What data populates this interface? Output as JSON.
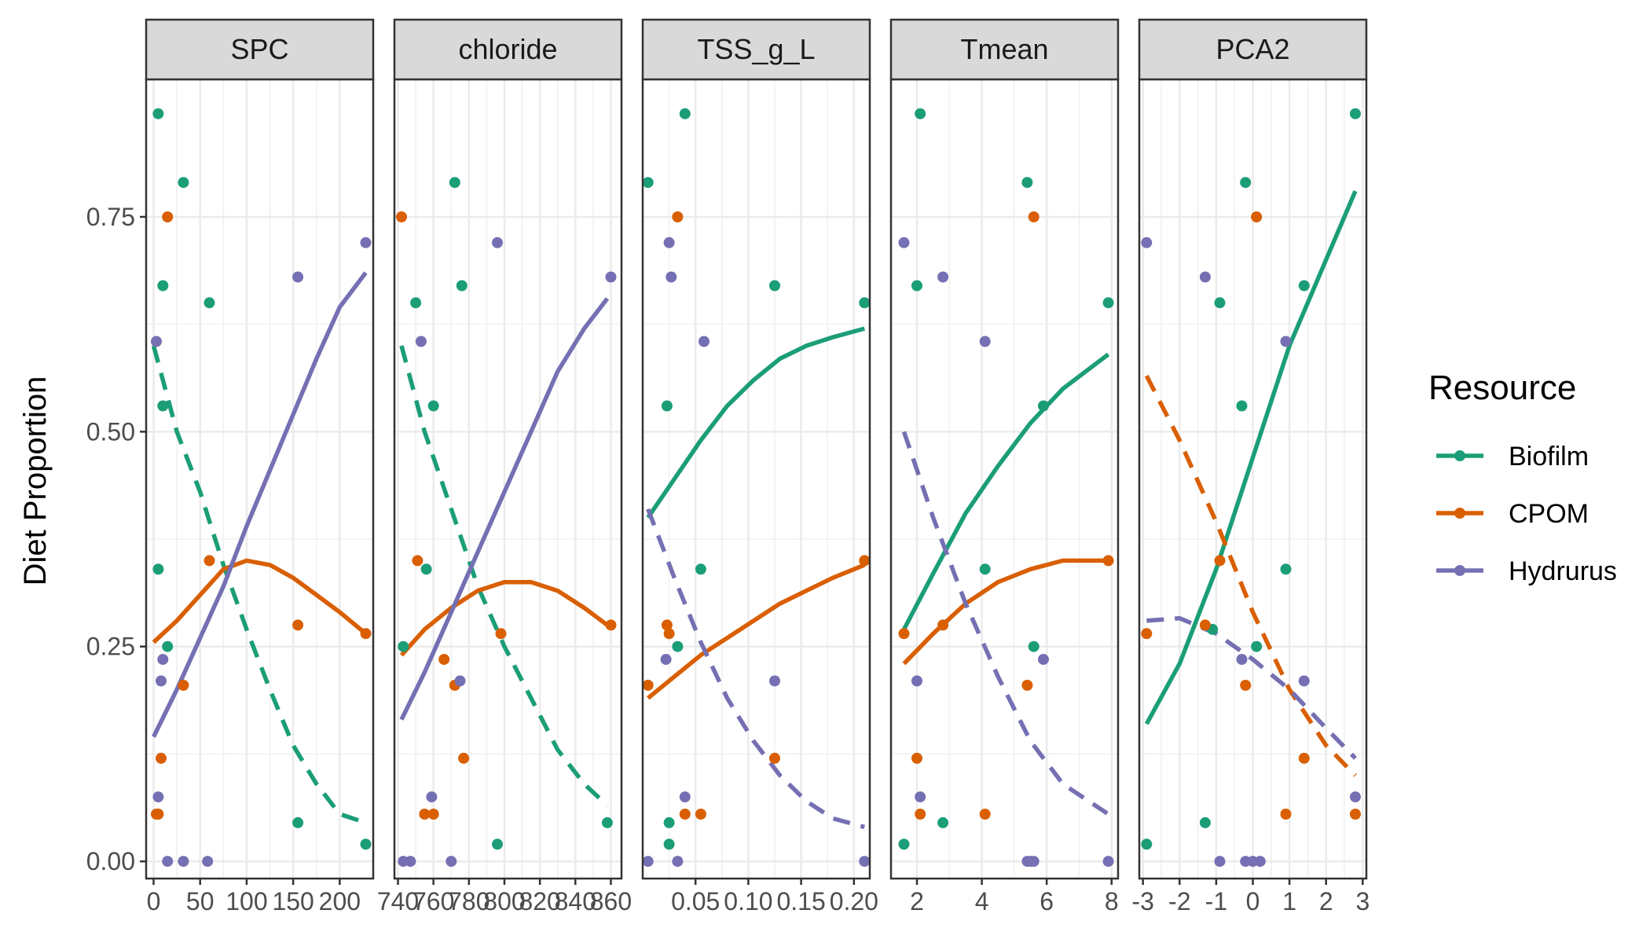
{
  "chart_data": {
    "type": "scatter",
    "ylabel": "Diet Proportion",
    "ylim": [
      -0.02,
      0.91
    ],
    "yticks": [
      0.0,
      0.25,
      0.5,
      0.75
    ],
    "ytick_labels": [
      "0.00",
      "0.25",
      "0.50",
      "0.75"
    ],
    "legend": {
      "title": "Resource",
      "placement": "right",
      "entries": [
        {
          "name": "Biofilm",
          "color": "#1B9E77"
        },
        {
          "name": "CPOM",
          "color": "#D95F02"
        },
        {
          "name": "Hydrurus",
          "color": "#7570B3"
        }
      ]
    },
    "panels": [
      {
        "name": "SPC",
        "xlim": [
          -8,
          236
        ],
        "xticks": [
          0,
          50,
          100,
          150,
          200
        ],
        "xtick_labels": [
          "0",
          "50",
          "100",
          "150",
          "200"
        ],
        "series": [
          {
            "name": "Biofilm",
            "x": [
              5,
              5,
              10,
              10,
              15,
              32,
              60,
              155,
              228
            ],
            "y": [
              0.87,
              0.34,
              0.67,
              0.53,
              0.25,
              0.79,
              0.65,
              0.045,
              0.02
            ]
          },
          {
            "name": "CPOM",
            "x": [
              3,
              5,
              8,
              15,
              32,
              60,
              155,
              228
            ],
            "y": [
              0.055,
              0.055,
              0.12,
              0.75,
              0.205,
              0.35,
              0.275,
              0.265
            ]
          },
          {
            "name": "Hydrurus",
            "x": [
              3,
              5,
              8,
              10,
              15,
              32,
              58,
              155,
              228
            ],
            "y": [
              0.605,
              0.075,
              0.21,
              0.235,
              0.0,
              0.0,
              0.0,
              0.68,
              0.72
            ]
          }
        ],
        "fits": [
          {
            "name": "Biofilm",
            "style": "dashed",
            "x": [
              0,
              25,
              50,
              75,
              100,
              125,
              150,
              175,
              200,
              228
            ],
            "y": [
              0.6,
              0.5,
              0.43,
              0.345,
              0.27,
              0.2,
              0.135,
              0.09,
              0.055,
              0.045
            ]
          },
          {
            "name": "CPOM",
            "style": "solid",
            "x": [
              0,
              25,
              50,
              75,
              100,
              125,
              150,
              175,
              200,
              228
            ],
            "y": [
              0.255,
              0.28,
              0.31,
              0.34,
              0.35,
              0.345,
              0.33,
              0.31,
              0.29,
              0.265
            ]
          },
          {
            "name": "Hydrurus",
            "style": "solid",
            "x": [
              0,
              25,
              50,
              75,
              100,
              125,
              150,
              175,
              200,
              228
            ],
            "y": [
              0.145,
              0.2,
              0.26,
              0.32,
              0.39,
              0.455,
              0.52,
              0.585,
              0.645,
              0.685
            ]
          }
        ]
      },
      {
        "name": "chloride",
        "xlim": [
          738,
          866
        ],
        "xticks": [
          740,
          760,
          780,
          800,
          820,
          840,
          860
        ],
        "xtick_labels": [
          "740",
          "760",
          "780",
          "800",
          "820",
          "840",
          "860"
        ],
        "series": [
          {
            "name": "Biofilm",
            "x": [
              743,
              750,
              756,
              760,
              772,
              776,
              796,
              858
            ],
            "y": [
              0.25,
              0.65,
              0.34,
              0.53,
              0.79,
              0.67,
              0.02,
              0.045
            ]
          },
          {
            "name": "CPOM",
            "x": [
              742,
              751,
              755,
              760,
              766,
              772,
              777,
              798,
              860
            ],
            "y": [
              0.75,
              0.35,
              0.055,
              0.055,
              0.235,
              0.205,
              0.12,
              0.265,
              0.275
            ]
          },
          {
            "name": "Hydrurus",
            "x": [
              743,
              747,
              753,
              759,
              770,
              775,
              796,
              860
            ],
            "y": [
              0.0,
              0.0,
              0.605,
              0.075,
              0.0,
              0.21,
              0.72,
              0.68
            ]
          }
        ],
        "fits": [
          {
            "name": "Biofilm",
            "style": "dashed",
            "x": [
              742,
              755,
              770,
              785,
              800,
              815,
              830,
              845,
              858
            ],
            "y": [
              0.6,
              0.5,
              0.41,
              0.32,
              0.25,
              0.19,
              0.13,
              0.09,
              0.065
            ]
          },
          {
            "name": "CPOM",
            "style": "solid",
            "x": [
              742,
              755,
              770,
              785,
              800,
              815,
              830,
              845,
              858
            ],
            "y": [
              0.24,
              0.27,
              0.295,
              0.315,
              0.325,
              0.325,
              0.315,
              0.295,
              0.275
            ]
          },
          {
            "name": "Hydrurus",
            "style": "solid",
            "x": [
              742,
              755,
              770,
              785,
              800,
              815,
              830,
              845,
              858
            ],
            "y": [
              0.165,
              0.22,
              0.29,
              0.36,
              0.43,
              0.5,
              0.57,
              0.62,
              0.655
            ]
          }
        ]
      },
      {
        "name": "TSS_g_L",
        "xlim": [
          0.0,
          0.215
        ],
        "xticks": [
          0.05,
          0.1,
          0.15,
          0.2
        ],
        "xtick_labels": [
          "0.05",
          "0.10",
          "0.15",
          "0.20"
        ],
        "series": [
          {
            "name": "Biofilm",
            "x": [
              0.005,
              0.023,
              0.025,
              0.025,
              0.033,
              0.04,
              0.055,
              0.125,
              0.21
            ],
            "y": [
              0.79,
              0.53,
              0.045,
              0.02,
              0.25,
              0.87,
              0.34,
              0.67,
              0.65
            ]
          },
          {
            "name": "CPOM",
            "x": [
              0.005,
              0.023,
              0.025,
              0.033,
              0.04,
              0.055,
              0.125,
              0.21
            ],
            "y": [
              0.205,
              0.275,
              0.265,
              0.75,
              0.055,
              0.055,
              0.12,
              0.35
            ]
          },
          {
            "name": "Hydrurus",
            "x": [
              0.005,
              0.022,
              0.025,
              0.027,
              0.033,
              0.04,
              0.058,
              0.125,
              0.21
            ],
            "y": [
              0.0,
              0.235,
              0.72,
              0.68,
              0.0,
              0.075,
              0.605,
              0.21,
              0.0
            ]
          }
        ],
        "fits": [
          {
            "name": "Biofilm",
            "style": "solid",
            "x": [
              0.005,
              0.03,
              0.055,
              0.08,
              0.105,
              0.13,
              0.155,
              0.18,
              0.21
            ],
            "y": [
              0.4,
              0.445,
              0.49,
              0.53,
              0.56,
              0.585,
              0.6,
              0.61,
              0.62
            ]
          },
          {
            "name": "CPOM",
            "style": "solid",
            "x": [
              0.005,
              0.03,
              0.055,
              0.08,
              0.105,
              0.13,
              0.155,
              0.18,
              0.21
            ],
            "y": [
              0.19,
              0.215,
              0.24,
              0.26,
              0.28,
              0.3,
              0.315,
              0.33,
              0.345
            ]
          },
          {
            "name": "Hydrurus",
            "style": "dashed",
            "x": [
              0.005,
              0.03,
              0.055,
              0.08,
              0.105,
              0.13,
              0.155,
              0.18,
              0.21
            ],
            "y": [
              0.41,
              0.33,
              0.255,
              0.19,
              0.14,
              0.1,
              0.07,
              0.05,
              0.04
            ]
          }
        ]
      },
      {
        "name": "Tmean",
        "xlim": [
          1.2,
          8.2
        ],
        "xticks": [
          2,
          4,
          6,
          8
        ],
        "xtick_labels": [
          "2",
          "4",
          "6",
          "8"
        ],
        "series": [
          {
            "name": "Biofilm",
            "x": [
              1.6,
              2.0,
              2.1,
              2.8,
              4.1,
              5.4,
              5.6,
              5.9,
              7.9
            ],
            "y": [
              0.02,
              0.67,
              0.87,
              0.045,
              0.34,
              0.79,
              0.25,
              0.53,
              0.65
            ]
          },
          {
            "name": "CPOM",
            "x": [
              1.6,
              2.0,
              2.1,
              2.8,
              4.1,
              5.4,
              5.6,
              7.9
            ],
            "y": [
              0.265,
              0.12,
              0.055,
              0.275,
              0.055,
              0.205,
              0.75,
              0.35
            ]
          },
          {
            "name": "Hydrurus",
            "x": [
              1.6,
              2.0,
              2.1,
              2.8,
              4.1,
              5.4,
              5.5,
              5.6,
              5.9,
              7.9
            ],
            "y": [
              0.72,
              0.21,
              0.075,
              0.68,
              0.605,
              0.0,
              0.0,
              0.0,
              0.235,
              0.0
            ]
          }
        ],
        "fits": [
          {
            "name": "Biofilm",
            "style": "solid",
            "x": [
              1.6,
              2.5,
              3.5,
              4.5,
              5.5,
              6.5,
              7.9
            ],
            "y": [
              0.27,
              0.335,
              0.405,
              0.46,
              0.51,
              0.55,
              0.59
            ]
          },
          {
            "name": "CPOM",
            "style": "solid",
            "x": [
              1.6,
              2.5,
              3.5,
              4.5,
              5.5,
              6.5,
              7.9
            ],
            "y": [
              0.23,
              0.265,
              0.3,
              0.325,
              0.34,
              0.35,
              0.35
            ]
          },
          {
            "name": "Hydrurus",
            "style": "dashed",
            "x": [
              1.6,
              2.5,
              3.5,
              4.5,
              5.5,
              6.5,
              7.9
            ],
            "y": [
              0.5,
              0.4,
              0.3,
              0.215,
              0.14,
              0.09,
              0.055
            ]
          }
        ]
      },
      {
        "name": "PCA2",
        "xlim": [
          -3.1,
          3.1
        ],
        "xticks": [
          -3,
          -2,
          -1,
          0,
          1,
          2,
          3
        ],
        "xtick_labels": [
          "-3",
          "-2",
          "-1",
          "0",
          "1",
          "2",
          "3"
        ],
        "series": [
          {
            "name": "Biofilm",
            "x": [
              -2.9,
              -1.3,
              -1.1,
              -0.9,
              -0.3,
              -0.2,
              0.1,
              0.9,
              1.4,
              2.8
            ],
            "y": [
              0.02,
              0.045,
              0.27,
              0.65,
              0.53,
              0.79,
              0.25,
              0.34,
              0.67,
              0.87
            ]
          },
          {
            "name": "CPOM",
            "x": [
              -2.9,
              -1.3,
              -0.9,
              -0.2,
              0.1,
              0.9,
              1.4,
              2.8
            ],
            "y": [
              0.265,
              0.275,
              0.35,
              0.205,
              0.75,
              0.055,
              0.12,
              0.055
            ]
          },
          {
            "name": "Hydrurus",
            "x": [
              -2.9,
              -1.3,
              -0.9,
              -0.3,
              -0.2,
              0.0,
              0.2,
              0.9,
              1.4,
              2.8
            ],
            "y": [
              0.72,
              0.68,
              0.0,
              0.235,
              0.0,
              0.0,
              0.0,
              0.605,
              0.21,
              0.075
            ]
          }
        ],
        "fits": [
          {
            "name": "Biofilm",
            "style": "solid",
            "x": [
              -2.9,
              -2.0,
              -1.0,
              0.0,
              1.0,
              2.0,
              2.8
            ],
            "y": [
              0.16,
              0.23,
              0.34,
              0.47,
              0.6,
              0.7,
              0.78
            ]
          },
          {
            "name": "CPOM",
            "style": "dashed",
            "x": [
              -2.9,
              -2.0,
              -1.0,
              0.0,
              1.0,
              2.0,
              2.8
            ],
            "y": [
              0.565,
              0.49,
              0.395,
              0.29,
              0.2,
              0.135,
              0.1
            ]
          },
          {
            "name": "Hydrurus",
            "style": "dashed",
            "x": [
              -2.9,
              -2.0,
              -1.0,
              0.0,
              1.0,
              2.0,
              2.8
            ],
            "y": [
              0.28,
              0.283,
              0.265,
              0.235,
              0.2,
              0.155,
              0.12
            ]
          }
        ]
      }
    ]
  }
}
